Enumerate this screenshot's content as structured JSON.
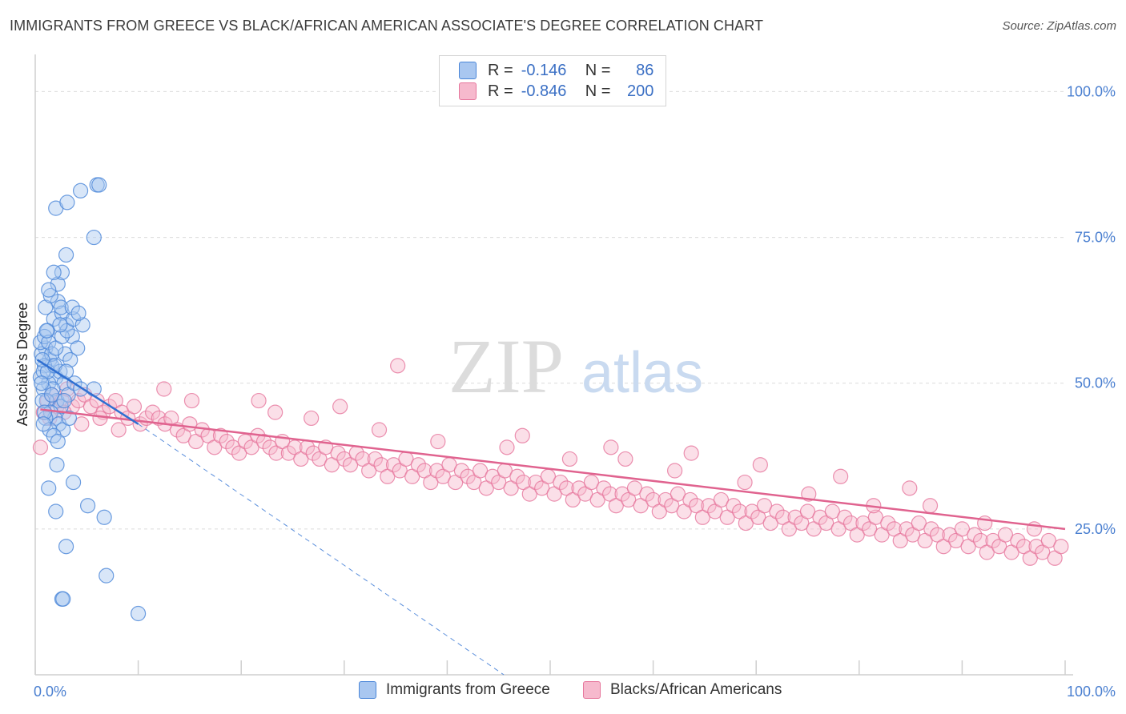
{
  "title": "IMMIGRANTS FROM GREECE VS BLACK/AFRICAN AMERICAN ASSOCIATE'S DEGREE CORRELATION CHART",
  "source": "Source: ZipAtlas.com",
  "watermark": {
    "zip": "ZIP",
    "atlas": "atlas"
  },
  "legend": {
    "rows": [
      {
        "r_label": "R =",
        "r_value": "-0.146",
        "n_label": "N =",
        "n_value": "86",
        "color": "#a9c7f0",
        "stroke": "#4a86d8"
      },
      {
        "r_label": "R =",
        "r_value": "-0.846",
        "n_label": "N =",
        "n_value": "200",
        "color": "#f6b9cd",
        "stroke": "#e6769c"
      }
    ]
  },
  "bottom_legend": [
    {
      "label": "Immigrants from Greece",
      "color": "#a9c7f0",
      "stroke": "#4a86d8"
    },
    {
      "label": "Blacks/African Americans",
      "color": "#f6b9cd",
      "stroke": "#e6769c"
    }
  ],
  "chart_data": {
    "type": "scatter",
    "title": "IMMIGRANTS FROM GREECE VS BLACK/AFRICAN AMERICAN ASSOCIATE'S DEGREE CORRELATION CHART",
    "xlabel": "",
    "ylabel": "Associate's Degree",
    "xlim": [
      0,
      100
    ],
    "ylim": [
      0,
      105
    ],
    "x_tick_labels": [
      "0.0%",
      "100.0%"
    ],
    "y_ticks": [
      25,
      50,
      75,
      100
    ],
    "y_tick_labels": [
      "25.0%",
      "50.0%",
      "75.0%",
      "100.0%"
    ],
    "grid": true,
    "series": [
      {
        "name": "Immigrants from Greece",
        "color": "#4a86d8",
        "fill": "#a9c7f0",
        "trend": {
          "x": [
            0.2,
            10.0
          ],
          "y": [
            54.0,
            43.0
          ]
        },
        "trend_extension": {
          "x": [
            10.0,
            45.5
          ],
          "y": [
            43.0,
            0.0
          ]
        },
        "points": [
          [
            1.2,
            59
          ],
          [
            1.8,
            61
          ],
          [
            2.2,
            64
          ],
          [
            2.6,
            62
          ],
          [
            3.0,
            60
          ],
          [
            3.6,
            58
          ],
          [
            4.1,
            56
          ],
          [
            1.0,
            56
          ],
          [
            1.4,
            54
          ],
          [
            1.6,
            53
          ],
          [
            2.0,
            51
          ],
          [
            2.4,
            52
          ],
          [
            2.8,
            50
          ],
          [
            0.6,
            55
          ],
          [
            0.9,
            53
          ],
          [
            1.3,
            50
          ],
          [
            1.7,
            49
          ],
          [
            2.1,
            47
          ],
          [
            2.5,
            46
          ],
          [
            3.2,
            48
          ],
          [
            3.8,
            50
          ],
          [
            4.4,
            49
          ],
          [
            0.5,
            51
          ],
          [
            0.8,
            49
          ],
          [
            1.1,
            47
          ],
          [
            1.5,
            45
          ],
          [
            1.9,
            44
          ],
          [
            2.3,
            43
          ],
          [
            2.7,
            42
          ],
          [
            3.3,
            44
          ],
          [
            0.7,
            47
          ],
          [
            1.0,
            44
          ],
          [
            1.4,
            42
          ],
          [
            1.8,
            41
          ],
          [
            2.2,
            40
          ],
          [
            0.5,
            57
          ],
          [
            0.9,
            58
          ],
          [
            1.3,
            57
          ],
          [
            2.9,
            55
          ],
          [
            3.4,
            54
          ],
          [
            0.8,
            52
          ],
          [
            1.2,
            52
          ],
          [
            0.6,
            50
          ],
          [
            1.6,
            55
          ],
          [
            2.0,
            56
          ],
          [
            2.6,
            58
          ],
          [
            3.1,
            59
          ],
          [
            3.7,
            61
          ],
          [
            4.6,
            60
          ],
          [
            1.0,
            63
          ],
          [
            1.5,
            65
          ],
          [
            2.2,
            67
          ],
          [
            2.6,
            69
          ],
          [
            1.8,
            69
          ],
          [
            3.0,
            72
          ],
          [
            5.7,
            75
          ],
          [
            2.0,
            80
          ],
          [
            3.1,
            81
          ],
          [
            4.4,
            83
          ],
          [
            6.0,
            84
          ],
          [
            6.2,
            84
          ],
          [
            1.3,
            66
          ],
          [
            2.5,
            63
          ],
          [
            3.6,
            63
          ],
          [
            4.2,
            62
          ],
          [
            1.1,
            59
          ],
          [
            2.4,
            60
          ],
          [
            0.7,
            54
          ],
          [
            1.9,
            53
          ],
          [
            3.0,
            52
          ],
          [
            0.9,
            45
          ],
          [
            1.6,
            48
          ],
          [
            2.8,
            47
          ],
          [
            5.7,
            49
          ],
          [
            0.8,
            43
          ],
          [
            2.1,
            36
          ],
          [
            1.3,
            32
          ],
          [
            3.7,
            33
          ],
          [
            2.0,
            28
          ],
          [
            5.1,
            29
          ],
          [
            6.7,
            27
          ],
          [
            3.0,
            22
          ],
          [
            6.9,
            17
          ],
          [
            2.6,
            13
          ],
          [
            2.7,
            13
          ],
          [
            10.0,
            10.5
          ]
        ]
      },
      {
        "name": "Blacks/African Americans",
        "color": "#e6769c",
        "fill": "#f6b9cd",
        "trend": {
          "x": [
            0.5,
            100.0
          ],
          "y": [
            45.5,
            25.0
          ]
        },
        "points": [
          [
            0.5,
            39
          ],
          [
            0.8,
            45
          ],
          [
            1.2,
            47
          ],
          [
            1.6,
            48
          ],
          [
            2.1,
            46
          ],
          [
            2.6,
            47
          ],
          [
            3.1,
            49
          ],
          [
            3.6,
            46
          ],
          [
            4.2,
            47
          ],
          [
            4.8,
            48
          ],
          [
            5.4,
            46
          ],
          [
            6.0,
            47
          ],
          [
            6.6,
            45
          ],
          [
            7.2,
            46
          ],
          [
            7.8,
            47
          ],
          [
            8.4,
            45
          ],
          [
            9.0,
            44
          ],
          [
            9.6,
            46
          ],
          [
            10.2,
            43
          ],
          [
            10.8,
            44
          ],
          [
            11.4,
            45
          ],
          [
            12.0,
            44
          ],
          [
            12.6,
            43
          ],
          [
            13.2,
            44
          ],
          [
            13.8,
            42
          ],
          [
            14.4,
            41
          ],
          [
            15.0,
            43
          ],
          [
            15.6,
            40
          ],
          [
            16.2,
            42
          ],
          [
            16.8,
            41
          ],
          [
            17.4,
            39
          ],
          [
            18.0,
            41
          ],
          [
            18.6,
            40
          ],
          [
            19.2,
            39
          ],
          [
            19.8,
            38
          ],
          [
            20.4,
            40
          ],
          [
            21.0,
            39
          ],
          [
            21.6,
            41
          ],
          [
            22.2,
            40
          ],
          [
            22.8,
            39
          ],
          [
            23.4,
            38
          ],
          [
            24.0,
            40
          ],
          [
            24.6,
            38
          ],
          [
            25.2,
            39
          ],
          [
            25.8,
            37
          ],
          [
            26.4,
            39
          ],
          [
            27.0,
            38
          ],
          [
            27.6,
            37
          ],
          [
            28.2,
            39
          ],
          [
            28.8,
            36
          ],
          [
            29.4,
            38
          ],
          [
            30.0,
            37
          ],
          [
            30.6,
            36
          ],
          [
            31.2,
            38
          ],
          [
            31.8,
            37
          ],
          [
            32.4,
            35
          ],
          [
            33.0,
            37
          ],
          [
            33.6,
            36
          ],
          [
            34.2,
            34
          ],
          [
            34.8,
            36
          ],
          [
            35.4,
            35
          ],
          [
            36.0,
            37
          ],
          [
            36.6,
            34
          ],
          [
            37.2,
            36
          ],
          [
            37.8,
            35
          ],
          [
            38.4,
            33
          ],
          [
            39.0,
            35
          ],
          [
            39.6,
            34
          ],
          [
            40.2,
            36
          ],
          [
            40.8,
            33
          ],
          [
            41.4,
            35
          ],
          [
            42.0,
            34
          ],
          [
            42.6,
            33
          ],
          [
            43.2,
            35
          ],
          [
            43.8,
            32
          ],
          [
            44.4,
            34
          ],
          [
            45.0,
            33
          ],
          [
            45.6,
            35
          ],
          [
            46.2,
            32
          ],
          [
            46.8,
            34
          ],
          [
            47.4,
            33
          ],
          [
            48.0,
            31
          ],
          [
            48.6,
            33
          ],
          [
            49.2,
            32
          ],
          [
            49.8,
            34
          ],
          [
            50.4,
            31
          ],
          [
            51.0,
            33
          ],
          [
            51.6,
            32
          ],
          [
            52.2,
            30
          ],
          [
            52.8,
            32
          ],
          [
            53.4,
            31
          ],
          [
            54.0,
            33
          ],
          [
            54.6,
            30
          ],
          [
            55.2,
            32
          ],
          [
            55.8,
            31
          ],
          [
            56.4,
            29
          ],
          [
            57.0,
            31
          ],
          [
            57.6,
            30
          ],
          [
            58.2,
            32
          ],
          [
            58.8,
            29
          ],
          [
            59.4,
            31
          ],
          [
            60.0,
            30
          ],
          [
            60.6,
            28
          ],
          [
            61.2,
            30
          ],
          [
            61.8,
            29
          ],
          [
            62.4,
            31
          ],
          [
            63.0,
            28
          ],
          [
            63.6,
            30
          ],
          [
            64.2,
            29
          ],
          [
            64.8,
            27
          ],
          [
            65.4,
            29
          ],
          [
            66.0,
            28
          ],
          [
            66.6,
            30
          ],
          [
            67.2,
            27
          ],
          [
            67.8,
            29
          ],
          [
            68.4,
            28
          ],
          [
            69.0,
            26
          ],
          [
            69.6,
            28
          ],
          [
            70.2,
            27
          ],
          [
            70.8,
            29
          ],
          [
            71.4,
            26
          ],
          [
            72.0,
            28
          ],
          [
            72.6,
            27
          ],
          [
            73.2,
            25
          ],
          [
            73.8,
            27
          ],
          [
            74.4,
            26
          ],
          [
            75.0,
            28
          ],
          [
            75.6,
            25
          ],
          [
            76.2,
            27
          ],
          [
            76.8,
            26
          ],
          [
            77.4,
            28
          ],
          [
            78.0,
            25
          ],
          [
            78.6,
            27
          ],
          [
            79.2,
            26
          ],
          [
            79.8,
            24
          ],
          [
            80.4,
            26
          ],
          [
            81.0,
            25
          ],
          [
            81.6,
            27
          ],
          [
            82.2,
            24
          ],
          [
            82.8,
            26
          ],
          [
            83.4,
            25
          ],
          [
            84.0,
            23
          ],
          [
            84.6,
            25
          ],
          [
            85.2,
            24
          ],
          [
            85.8,
            26
          ],
          [
            86.4,
            23
          ],
          [
            87.0,
            25
          ],
          [
            87.6,
            24
          ],
          [
            88.2,
            22
          ],
          [
            88.8,
            24
          ],
          [
            89.4,
            23
          ],
          [
            90.0,
            25
          ],
          [
            90.6,
            22
          ],
          [
            91.2,
            24
          ],
          [
            91.8,
            23
          ],
          [
            92.4,
            21
          ],
          [
            93.0,
            23
          ],
          [
            93.6,
            22
          ],
          [
            94.2,
            24
          ],
          [
            94.8,
            21
          ],
          [
            95.4,
            23
          ],
          [
            96.0,
            22
          ],
          [
            96.6,
            20
          ],
          [
            97.2,
            22
          ],
          [
            97.8,
            21
          ],
          [
            98.4,
            23
          ],
          [
            99.0,
            20
          ],
          [
            99.6,
            22
          ],
          [
            1.4,
            44
          ],
          [
            2.8,
            45
          ],
          [
            4.5,
            43
          ],
          [
            6.3,
            44
          ],
          [
            8.1,
            42
          ],
          [
            15.2,
            47
          ],
          [
            23.3,
            45
          ],
          [
            26.8,
            44
          ],
          [
            33.4,
            42
          ],
          [
            39.1,
            40
          ],
          [
            45.8,
            39
          ],
          [
            51.9,
            37
          ],
          [
            57.3,
            37
          ],
          [
            62.1,
            35
          ],
          [
            68.9,
            33
          ],
          [
            75.1,
            31
          ],
          [
            81.4,
            29
          ],
          [
            86.9,
            29
          ],
          [
            92.2,
            26
          ],
          [
            97.0,
            25
          ],
          [
            12.5,
            49
          ],
          [
            21.7,
            47
          ],
          [
            29.6,
            46
          ],
          [
            35.2,
            53
          ],
          [
            47.3,
            41
          ],
          [
            55.9,
            39
          ],
          [
            63.7,
            38
          ],
          [
            70.4,
            36
          ],
          [
            78.2,
            34
          ],
          [
            84.9,
            32
          ]
        ]
      }
    ]
  }
}
